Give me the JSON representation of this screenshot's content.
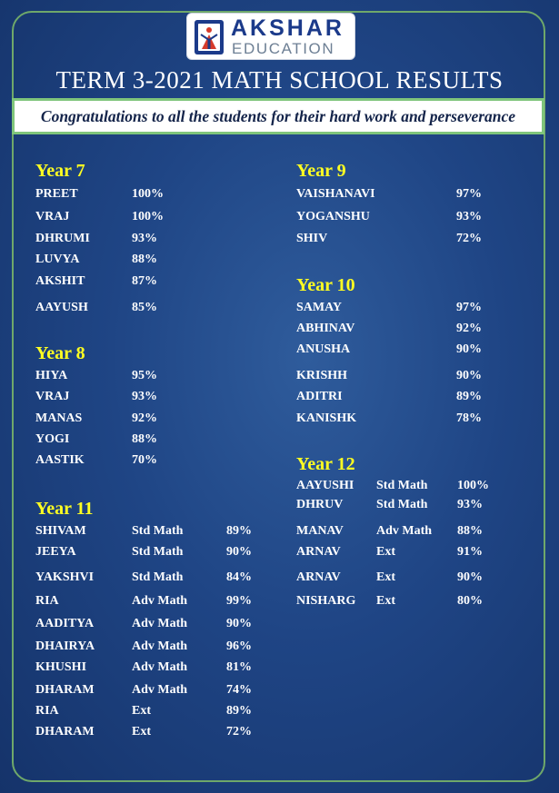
{
  "logo": {
    "brand": "AKSHAR",
    "sub": "EDUCATION"
  },
  "title": "TERM 3-2021 MATH SCHOOL RESULTS",
  "banner": "Congratulations to all the students for their hard work and perseverance",
  "colors": {
    "heading": "#ffff22",
    "frame": "#6fa86a",
    "banner_border": "#7fc57b",
    "logo_blue": "#1b3a8a"
  },
  "sections": [
    {
      "id": "y7",
      "title": "Year 7",
      "students": [
        {
          "name": "PREET",
          "score": "100%"
        },
        {
          "name": "VRAJ",
          "score": "100%"
        },
        {
          "name": "DHRUMI",
          "score": "93%"
        },
        {
          "name": "LUVYA",
          "score": "88%"
        },
        {
          "name": "AKSHIT",
          "score": "87%"
        },
        {
          "name": "AAYUSH",
          "score": "85%"
        }
      ]
    },
    {
      "id": "y8",
      "title": "Year 8",
      "students": [
        {
          "name": "HIYA",
          "score": "95%"
        },
        {
          "name": "VRAJ",
          "score": "93%"
        },
        {
          "name": "MANAS",
          "score": "92%"
        },
        {
          "name": "YOGI",
          "score": "88%"
        },
        {
          "name": "AASTIK",
          "score": "70%"
        }
      ]
    },
    {
      "id": "y11",
      "title": "Year 11",
      "students": [
        {
          "name": "SHIVAM",
          "course": "Std Math",
          "score": "89%"
        },
        {
          "name": "JEEYA",
          "course": "Std Math",
          "score": "90%"
        },
        {
          "name": "YAKSHVI",
          "course": "Std Math",
          "score": "84%"
        },
        {
          "name": "RIA",
          "course": "Adv Math",
          "score": "99%"
        },
        {
          "name": "AADITYA",
          "course": "Adv Math",
          "score": "90%"
        },
        {
          "name": "DHAIRYA",
          "course": "Adv Math",
          "score": "96%"
        },
        {
          "name": "KHUSHI",
          "course": "Adv Math",
          "score": "81%"
        },
        {
          "name": "DHARAM",
          "course": "Adv Math",
          "score": "74%"
        },
        {
          "name": "RIA",
          "course": "Ext",
          "score": "89%"
        },
        {
          "name": "DHARAM",
          "course": "Ext",
          "score": "72%"
        }
      ]
    },
    {
      "id": "y9",
      "title": "Year 9",
      "students": [
        {
          "name": "VAISHANAVI",
          "score": "97%"
        },
        {
          "name": "YOGANSHU",
          "score": "93%"
        },
        {
          "name": "SHIV",
          "score": "72%"
        }
      ]
    },
    {
      "id": "y10",
      "title": "Year 10",
      "students": [
        {
          "name": "SAMAY",
          "score": "97%"
        },
        {
          "name": "ABHINAV",
          "score": "92%"
        },
        {
          "name": "ANUSHA",
          "score": "90%"
        },
        {
          "name": "KRISHH",
          "score": "90%"
        },
        {
          "name": "ADITRI",
          "score": "89%"
        },
        {
          "name": "KANISHK",
          "score": "78%"
        }
      ]
    },
    {
      "id": "y12",
      "title": "Year 12",
      "students": [
        {
          "name": "AAYUSHI",
          "course": "Std Math",
          "score": "100%"
        },
        {
          "name": "DHRUV",
          "course": "Std Math",
          "score": "93%"
        },
        {
          "name": "MANAV",
          "course": "Adv Math",
          "score": "88%"
        },
        {
          "name": "ARNAV",
          "course": "Ext",
          "score": "91%"
        },
        {
          "name": "ARNAV",
          "course": "Ext",
          "score": "90%"
        },
        {
          "name": "NISHARG",
          "course": "Ext",
          "score": "80%"
        }
      ]
    }
  ]
}
